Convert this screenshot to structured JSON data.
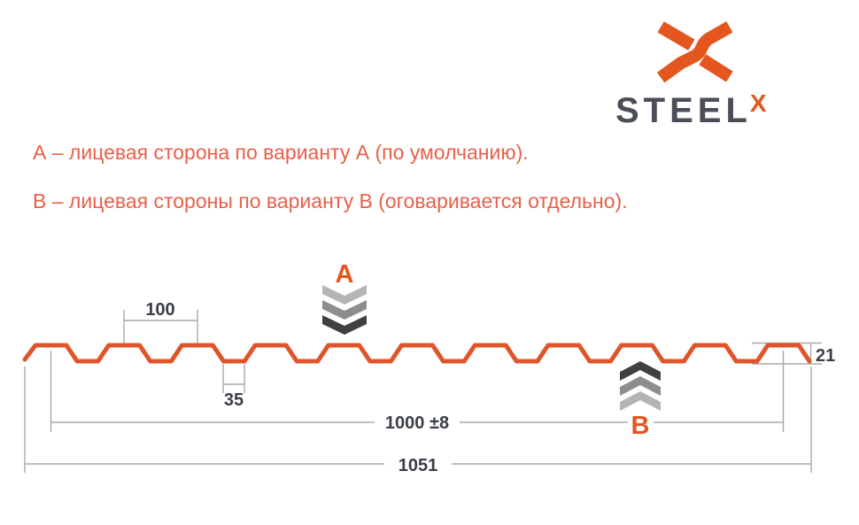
{
  "logo": {
    "wordmark": "STEEL",
    "x_mark": "X"
  },
  "notes": {
    "line_a": "А – лицевая сторона по варианту А (по умолчанию).",
    "line_b": "В – лицевая стороны по варианту В (оговаривается отдельно)."
  },
  "diagram": {
    "marker_a_label": "А",
    "marker_b_label": "В",
    "dimensions": {
      "pitch": "100",
      "rib_bottom_width": "35",
      "profile_height": "21",
      "working_width": "1000 ±8",
      "overall_width": "1051"
    }
  },
  "colors": {
    "brand_orange": "#E3571F",
    "note_text_orange": "#E8604A",
    "dimension_text": "#3A3E46",
    "dimension_line": "#A7A9AC",
    "wordmark_gray": "#4A4E57",
    "chevron_light": "#B4B4B4",
    "chevron_mid": "#8D8D8D",
    "chevron_dark": "#404040"
  }
}
